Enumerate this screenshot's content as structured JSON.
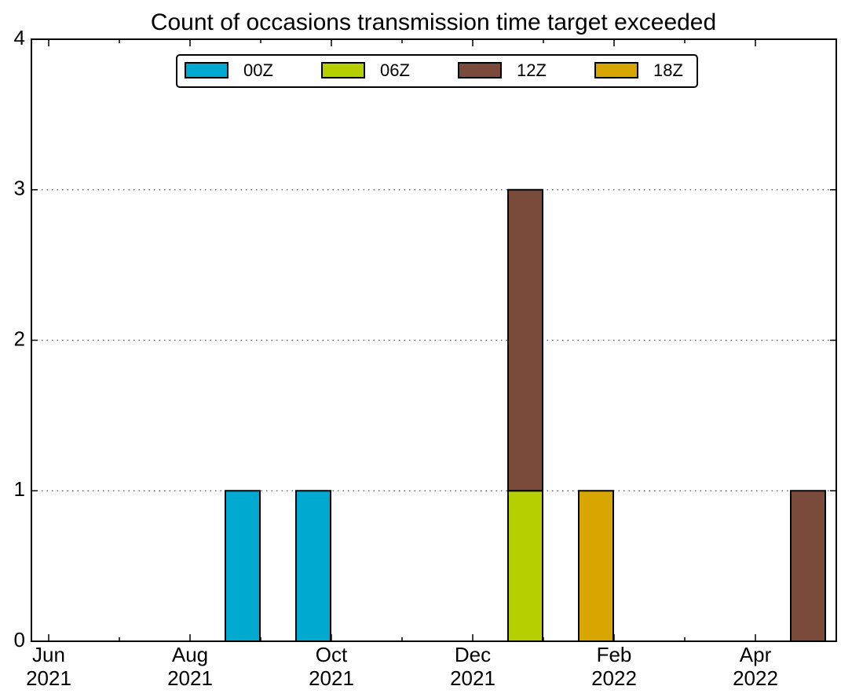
{
  "chart_data": {
    "type": "stacked-bar",
    "title": "Count of occasions transmission time target exceeded",
    "categories": [
      "Jun 2021",
      null,
      "Aug 2021",
      null,
      "Oct 2021",
      null,
      "Dec 2021",
      null,
      "Feb 2022",
      null,
      "Apr 2022"
    ],
    "series": [
      {
        "name": "00Z",
        "color": "#00a9cf",
        "values": [
          0,
          0,
          1,
          1,
          0,
          0,
          0,
          0,
          0,
          0,
          0
        ]
      },
      {
        "name": "06Z",
        "color": "#b5cf00",
        "values": [
          0,
          0,
          0,
          0,
          0,
          0,
          1,
          0,
          0,
          0,
          0
        ]
      },
      {
        "name": "12Z",
        "color": "#7a4a3a",
        "values": [
          0,
          0,
          0,
          0,
          0,
          0,
          2,
          0,
          0,
          0,
          1
        ]
      },
      {
        "name": "18Z",
        "color": "#d8a600",
        "values": [
          0,
          0,
          0,
          0,
          0,
          0,
          0,
          1,
          0,
          0,
          0
        ]
      }
    ],
    "ylim": [
      0,
      4
    ],
    "yticks": [
      0,
      1,
      2,
      3,
      4
    ],
    "grid": true,
    "legend": "top"
  }
}
